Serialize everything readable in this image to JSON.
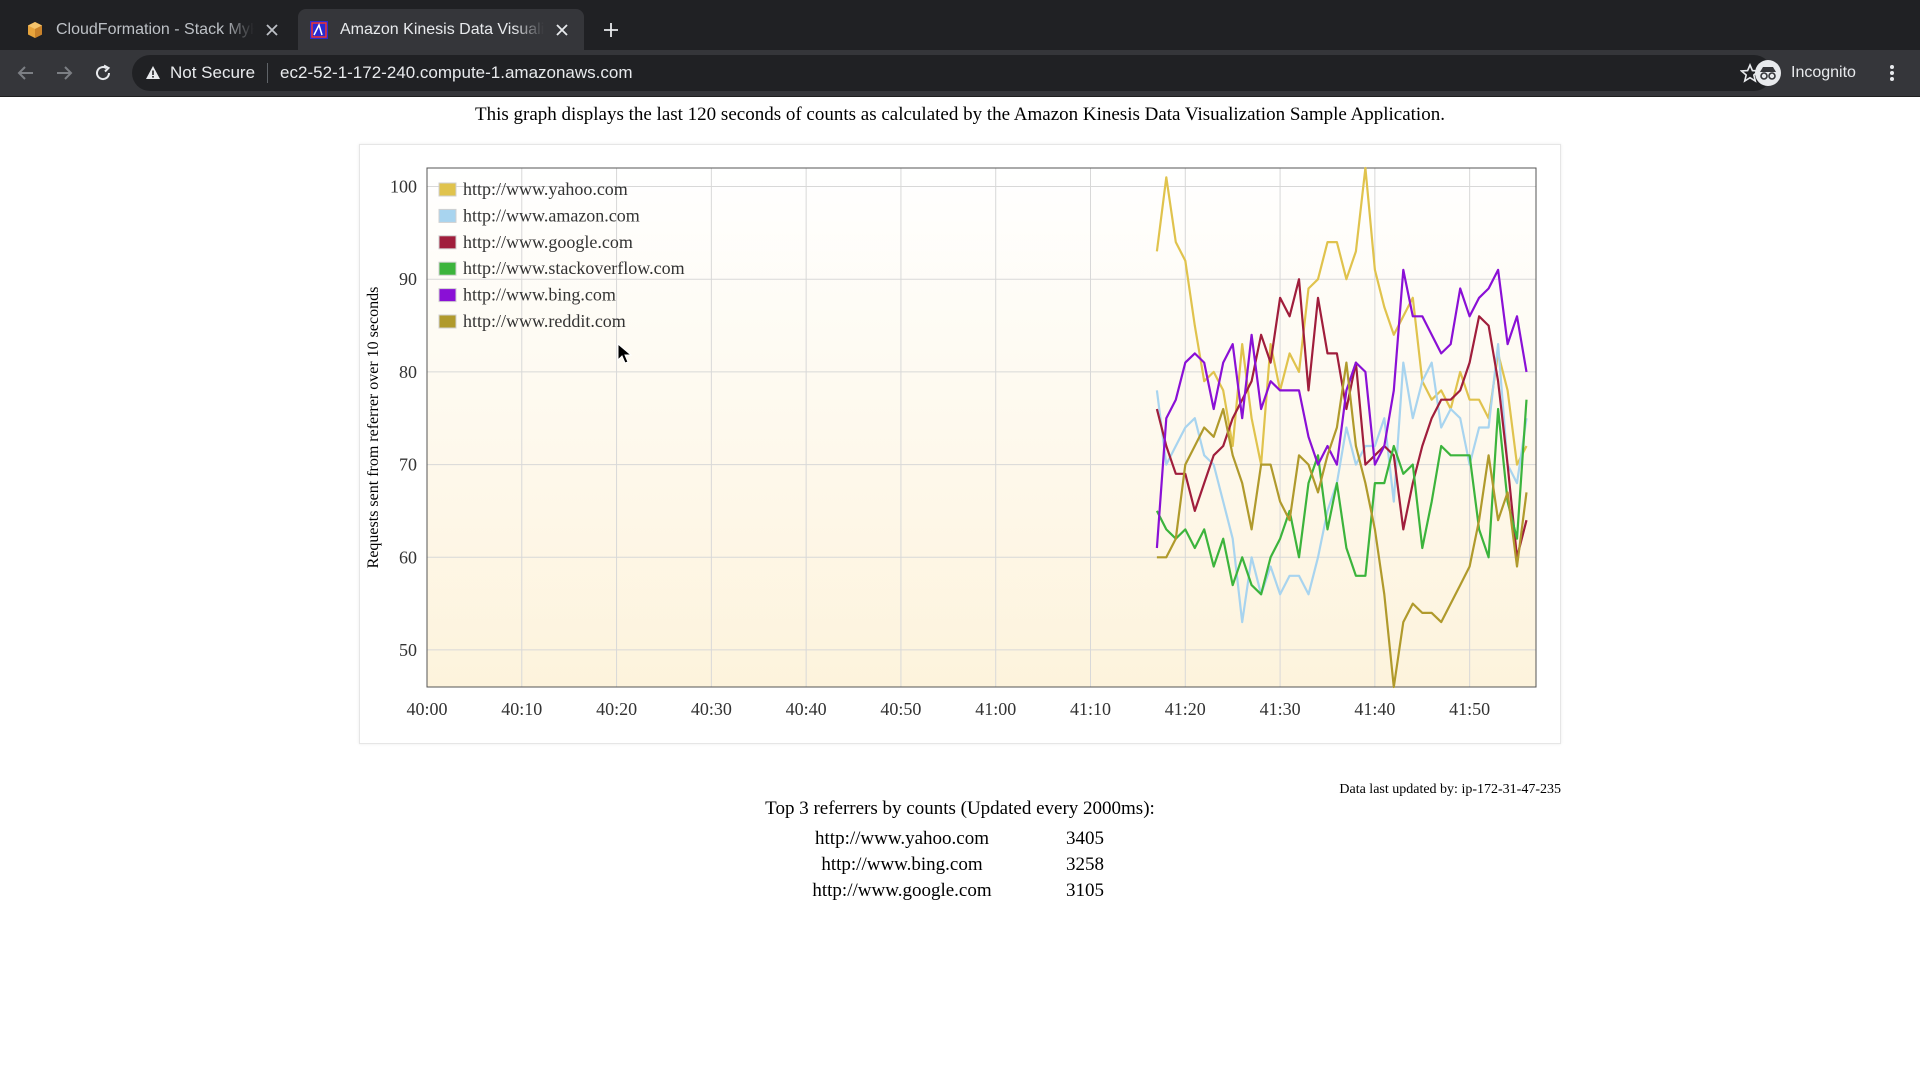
{
  "browser": {
    "tabs": [
      {
        "title": "CloudFormation - Stack MyKinesisApp",
        "active": false,
        "favicon": "aws-cube-icon"
      },
      {
        "title": "Amazon Kinesis Data Visualization",
        "active": true,
        "favicon": "kinesis-app-icon"
      }
    ],
    "security_label": "Not Secure",
    "url": "ec2-52-1-172-240.compute-1.amazonaws.com",
    "profile_label": "Incognito"
  },
  "page": {
    "caption": "This graph displays the last 120 seconds of counts as calculated by the Amazon Kinesis Data Visualization Sample Application.",
    "updated_label": "Data last updated by: ip-172-31-47-235",
    "top3": {
      "heading": "Top 3 referrers by counts (Updated every 2000ms):",
      "rows": [
        {
          "referrer": "http://www.yahoo.com",
          "count": "3405"
        },
        {
          "referrer": "http://www.bing.com",
          "count": "3258"
        },
        {
          "referrer": "http://www.google.com",
          "count": "3105"
        }
      ]
    }
  },
  "chart_data": {
    "type": "line",
    "ylabel": "Requests sent from referrer over 10 seconds",
    "xlabel": "",
    "ylim": [
      46,
      102
    ],
    "xlim": [
      "40:00",
      "41:57"
    ],
    "x_ticks": [
      "40:00",
      "40:10",
      "40:20",
      "40:30",
      "40:40",
      "40:50",
      "41:00",
      "41:10",
      "41:20",
      "41:30",
      "41:40",
      "41:50"
    ],
    "y_ticks": [
      50,
      60,
      70,
      80,
      90,
      100
    ],
    "grid": true,
    "legend": "top-left",
    "x": [
      "41:17",
      "41:18",
      "41:19",
      "41:20",
      "41:21",
      "41:22",
      "41:23",
      "41:24",
      "41:25",
      "41:26",
      "41:27",
      "41:28",
      "41:29",
      "41:30",
      "41:31",
      "41:32",
      "41:33",
      "41:34",
      "41:35",
      "41:36",
      "41:37",
      "41:38",
      "41:39",
      "41:40",
      "41:41",
      "41:42",
      "41:43",
      "41:44",
      "41:45",
      "41:46",
      "41:47",
      "41:48",
      "41:49",
      "41:50",
      "41:51",
      "41:52",
      "41:53",
      "41:54",
      "41:55",
      "41:56"
    ],
    "series": [
      {
        "name": "http://www.yahoo.com",
        "color": "#e0c34d",
        "values": [
          93,
          101,
          94,
          92,
          85,
          79,
          80,
          78,
          72,
          83,
          75,
          70,
          83,
          78,
          82,
          80,
          89,
          90,
          94,
          94,
          90,
          93,
          102,
          91,
          87,
          84,
          86,
          88,
          79,
          77,
          78,
          76,
          80,
          77,
          77,
          75,
          82,
          78,
          70,
          72
        ]
      },
      {
        "name": "http://www.amazon.com",
        "color": "#a8d4ef",
        "values": [
          78,
          70,
          72,
          74,
          75,
          71,
          70,
          66,
          62,
          53,
          60,
          56,
          59,
          56,
          58,
          58,
          56,
          60,
          65,
          68,
          74,
          70,
          72,
          72,
          75,
          66,
          81,
          75,
          79,
          81,
          74,
          76,
          75,
          70,
          74,
          74,
          83,
          70,
          68,
          75
        ]
      },
      {
        "name": "http://www.google.com",
        "color": "#a01e3c",
        "values": [
          76,
          72,
          69,
          69,
          65,
          68,
          71,
          72,
          75,
          77,
          79,
          84,
          81,
          88,
          86,
          90,
          78,
          88,
          82,
          82,
          76,
          81,
          70,
          71,
          72,
          71,
          63,
          68,
          72,
          75,
          77,
          77,
          78,
          81,
          86,
          85,
          79,
          70,
          60,
          64
        ]
      },
      {
        "name": "http://www.stackoverflow.com",
        "color": "#3cb43c",
        "values": [
          65,
          63,
          62,
          63,
          61,
          63,
          59,
          62,
          57,
          60,
          57,
          56,
          60,
          62,
          65,
          60,
          68,
          71,
          63,
          68,
          61,
          58,
          58,
          68,
          68,
          72,
          69,
          70,
          61,
          66,
          72,
          71,
          71,
          71,
          63,
          60,
          76,
          66,
          62,
          77
        ]
      },
      {
        "name": "http://www.bing.com",
        "color": "#8a10d6",
        "values": [
          61,
          75,
          77,
          81,
          82,
          81,
          76,
          81,
          83,
          75,
          84,
          76,
          79,
          78,
          78,
          78,
          73,
          70,
          72,
          70,
          78,
          81,
          80,
          70,
          72,
          78,
          91,
          86,
          86,
          84,
          82,
          83,
          89,
          86,
          88,
          89,
          91,
          83,
          86,
          80
        ]
      },
      {
        "name": "http://www.reddit.com",
        "color": "#b09a2c",
        "values": [
          60,
          60,
          62,
          70,
          72,
          74,
          73,
          76,
          71,
          68,
          63,
          70,
          70,
          66,
          64,
          71,
          70,
          67,
          71,
          74,
          81,
          72,
          68,
          63,
          56,
          46,
          53,
          55,
          54,
          54,
          53,
          55,
          57,
          59,
          64,
          71,
          64,
          67,
          59,
          67
        ]
      }
    ]
  }
}
